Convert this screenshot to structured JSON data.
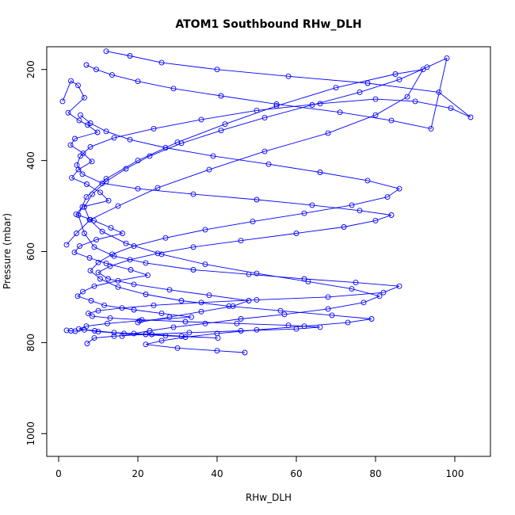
{
  "chart_data": {
    "type": "line",
    "title": "ATOM1 Southbound RHw_DLH",
    "xlabel": "RHw_DLH",
    "ylabel": "Pressure (mbar)",
    "xlim": [
      -3,
      109
    ],
    "ylim": [
      1050,
      150
    ],
    "y_reversed": true,
    "x_ticks": [
      0,
      20,
      40,
      60,
      80,
      100
    ],
    "y_ticks": [
      200,
      400,
      600,
      800,
      1000
    ],
    "grid": false,
    "legend": "none",
    "colors": {
      "series": "#0000ff",
      "axis": "#000000",
      "background": "#ffffff"
    },
    "markers": "open-circle",
    "series": [
      {
        "x": [
          1.0,
          3.1,
          4.9,
          6.5,
          2.4,
          5.2,
          7.3,
          9.8,
          4.1,
          3.0,
          6.2,
          8.4,
          5.0,
          3.3,
          7.1,
          10.5,
          12.6,
          6.0,
          4.4,
          8.9,
          13.2,
          16.1,
          9.5,
          5.3,
          4.0,
          7.8,
          12.0,
          18.2,
          22.5,
          15.0,
          9.0,
          6.1,
          4.8,
          8.2,
          11.5,
          19.0,
          26.0,
          33.5,
          20.4,
          12.3,
          7.0,
          5.1,
          9.1,
          14.0,
          23.5,
          31.0,
          40.2,
          27.0,
          16.5,
          10.0,
          6.5,
          4.2,
          3.1,
          2.0
        ],
        "y": [
          270,
          225,
          235,
          262,
          295,
          312,
          322,
          338,
          352,
          366,
          384,
          402,
          420,
          438,
          452,
          470,
          488,
          502,
          518,
          532,
          548,
          560,
          574,
          588,
          602,
          614,
          626,
          640,
          652,
          664,
          676,
          688,
          698,
          708,
          718,
          728,
          736,
          744,
          752,
          758,
          764,
          770,
          774,
          778,
          782,
          786,
          790,
          785,
          780,
          776,
          772,
          775,
          774,
          773
        ]
      },
      {
        "x": [
          2.0,
          4.5,
          8.0,
          15.0,
          25.0,
          38.0,
          52.0,
          68.0,
          80.0,
          88.0,
          92.0,
          85.0,
          70.0,
          55.0,
          42.0,
          30.0,
          20.0,
          12.0,
          7.0,
          5.0,
          6.5,
          9.0,
          14.0,
          22.0,
          34.0,
          48.0,
          62.0,
          75.0,
          86.0,
          82.0,
          68.0,
          50.0,
          36.0,
          24.0,
          16.0,
          10.0,
          7.5,
          8.5,
          13.0,
          21.0,
          32.0,
          45.0,
          58.0,
          66.0,
          60.0,
          46.0,
          33.0,
          22.0,
          14.0,
          9.0,
          7.2
        ],
        "y": [
          585,
          560,
          530,
          500,
          460,
          420,
          380,
          340,
          300,
          260,
          200,
          210,
          240,
          280,
          320,
          360,
          400,
          440,
          480,
          520,
          560,
          590,
          610,
          625,
          640,
          650,
          660,
          668,
          676,
          690,
          700,
          706,
          712,
          718,
          724,
          730,
          736,
          742,
          746,
          750,
          754,
          758,
          762,
          766,
          770,
          774,
          778,
          782,
          786,
          790,
          802
        ]
      },
      {
        "x": [
          12.0,
          18.0,
          26.0,
          40.0,
          58.0,
          78.0,
          96.0,
          104.0,
          99.0,
          90.0,
          80.0,
          66.0,
          50.0,
          36.0,
          24.0,
          14.0,
          8.0,
          5.5,
          4.6,
          6.0,
          11.0,
          20.0,
          34.0,
          50.0,
          64.0,
          76.0,
          84.0,
          80.0,
          72.0,
          60.0,
          46.0,
          34.0,
          25.0,
          18.0,
          13.0,
          10.0,
          12.5,
          19.0,
          28.0,
          38.0,
          48.0,
          44.0,
          36.0,
          28.0,
          20.0
        ],
        "y": [
          160,
          170,
          185,
          200,
          215,
          230,
          250,
          305,
          285,
          270,
          265,
          275,
          290,
          310,
          330,
          350,
          370,
          390,
          410,
          430,
          450,
          462,
          474,
          486,
          498,
          510,
          520,
          532,
          546,
          560,
          576,
          590,
          604,
          618,
          632,
          646,
          660,
          672,
          684,
          696,
          708,
          720,
          732,
          744,
          756
        ]
      },
      {
        "x": [
          7.0,
          9.5,
          13.5,
          20.0,
          29.0,
          41.0,
          55.0,
          71.0,
          84.0,
          94.0,
          98.0,
          93.0,
          86.0,
          76.0,
          64.0,
          52.0,
          41.0,
          31.0,
          23.0,
          17.0,
          12.0,
          8.5,
          6.5,
          7.8,
          11.0,
          17.0,
          26.0,
          37.0,
          50.0,
          63.0,
          74.0,
          81.0,
          77.0,
          68.0,
          57.0,
          46.0,
          37.0,
          29.0,
          23.0,
          19.0,
          16.0
        ],
        "y": [
          190,
          200,
          212,
          226,
          242,
          258,
          276,
          294,
          312,
          330,
          175,
          195,
          222,
          250,
          278,
          306,
          334,
          362,
          390,
          418,
          446,
          474,
          502,
          530,
          556,
          582,
          606,
          628,
          648,
          666,
          682,
          698,
          712,
          726,
          738,
          748,
          758,
          766,
          774,
          780,
          786
        ]
      },
      {
        "x": [
          5.5,
          8.0,
          12.0,
          18.0,
          27.0,
          39.0,
          53.0,
          66.0,
          78.0,
          86.0,
          83.0,
          74.0,
          62.0,
          49.0,
          37.0,
          27.0,
          19.0,
          13.5,
          10.0,
          8.0,
          10.5,
          15.0,
          22.0,
          31.0,
          43.0,
          56.0,
          69.0,
          79.0,
          73.0,
          62.0,
          50.0,
          40.0,
          32.0,
          26.0,
          22.0,
          30.0,
          40.0,
          47.0
        ],
        "y": [
          300,
          318,
          336,
          354,
          372,
          390,
          408,
          426,
          444,
          462,
          480,
          498,
          516,
          534,
          552,
          570,
          588,
          606,
          624,
          642,
          660,
          678,
          694,
          708,
          720,
          730,
          740,
          748,
          756,
          764,
          772,
          780,
          788,
          796,
          804,
          812,
          818,
          822
        ]
      }
    ]
  }
}
